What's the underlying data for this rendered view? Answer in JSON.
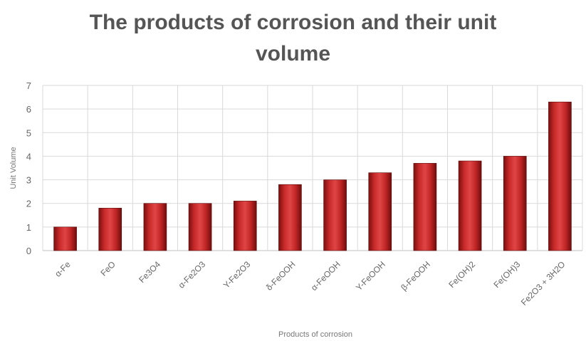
{
  "chart_data": {
    "type": "bar",
    "title_line1": "The products of corrosion and their unit",
    "title_line2": "volume",
    "xlabel": "Products of corrosion",
    "ylabel": "Unit Volume",
    "ylim": [
      0,
      7
    ],
    "yticks": [
      0,
      1,
      2,
      3,
      4,
      5,
      6,
      7
    ],
    "grid": true,
    "bar_color": "#b81e1e",
    "categories": [
      "α-Fe",
      "FeO",
      "Fe3O4",
      "α-Fe2O3",
      "Υ-Fe2O3",
      "δ-FeOOH",
      "α-FeOOH",
      "Υ-FeOOH",
      "β-FeOOH",
      "Fe(OH)2",
      "Fe(OH)3",
      "Fe2O3 + 3H2O"
    ],
    "values": [
      1.0,
      1.8,
      2.0,
      2.0,
      2.1,
      2.8,
      3.0,
      3.3,
      3.7,
      3.8,
      4.0,
      6.3
    ]
  }
}
